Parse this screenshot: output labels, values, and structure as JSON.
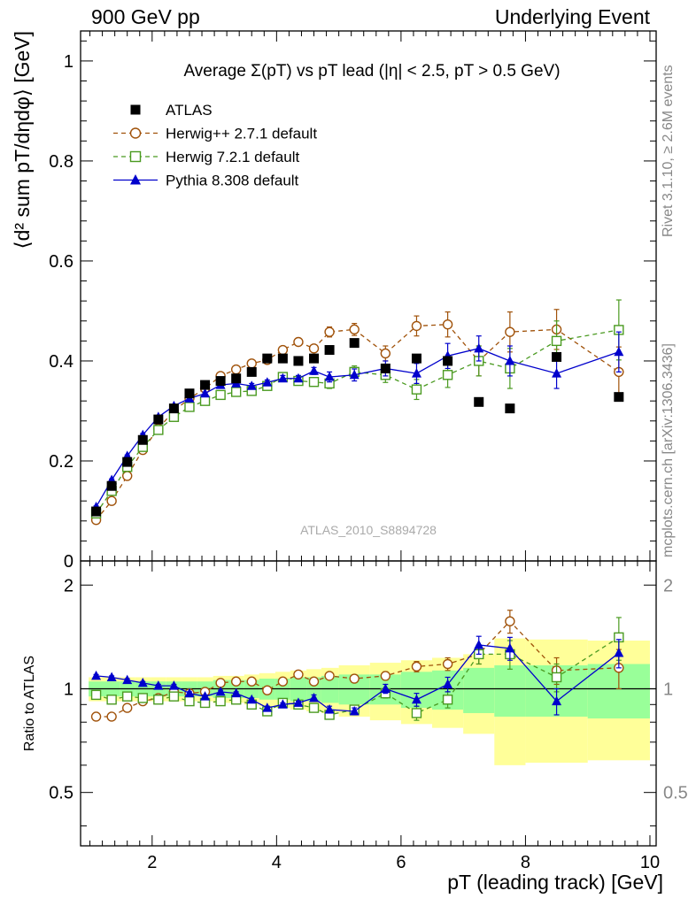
{
  "header": {
    "left": "900 GeV pp",
    "right": "Underlying Event"
  },
  "side_labels": {
    "rivet": "Rivet 3.1.10, ≥ 2.6M events",
    "mcplots": "mcplots.cern.ch [arXiv:1306.3436]"
  },
  "analysis_id": "ATLAS_2010_S8894728",
  "chart_data": [
    {
      "type": "scatter",
      "title": "Average Σ(pT) vs pT lead (|η| < 2.5, pT > 0.5 GeV)",
      "ylabel": "⟨d² sum pT/dηdφ⟩ [GeV]",
      "xlabel": "pT (leading track) [GeV]",
      "xlim": [
        0.85,
        10.1
      ],
      "ylim": [
        0,
        1.06
      ],
      "yticks": [
        0,
        0.2,
        0.4,
        0.6,
        0.8,
        1
      ],
      "ytick_labels": [
        "0",
        "0.2",
        "0.4",
        "0.6",
        "0.8",
        "1"
      ],
      "legend_position": "top-left",
      "series": [
        {
          "name": "ATLAS",
          "color": "#000000",
          "marker": "filled-square",
          "x": [
            1.1,
            1.35,
            1.6,
            1.85,
            2.1,
            2.35,
            2.6,
            2.85,
            3.1,
            3.35,
            3.6,
            3.85,
            4.1,
            4.35,
            4.6,
            4.85,
            5.25,
            5.75,
            6.25,
            6.75,
            7.25,
            7.75,
            8.5,
            9.5
          ],
          "y": [
            0.099,
            0.15,
            0.198,
            0.242,
            0.283,
            0.305,
            0.335,
            0.352,
            0.36,
            0.365,
            0.378,
            0.405,
            0.405,
            0.4,
            0.405,
            0.422,
            0.436,
            0.385,
            0.405,
            0.4,
            0.318,
            0.305,
            0.408,
            0.328
          ]
        },
        {
          "name": "Herwig++ 2.7.1 default",
          "color": "#a0520a",
          "marker": "open-circle",
          "line": "dashed",
          "x": [
            1.1,
            1.35,
            1.6,
            1.85,
            2.1,
            2.35,
            2.6,
            2.85,
            3.1,
            3.35,
            3.6,
            3.85,
            4.1,
            4.35,
            4.6,
            4.85,
            5.25,
            5.75,
            6.25,
            6.75,
            7.25,
            7.75,
            8.5,
            9.5
          ],
          "y": [
            0.082,
            0.12,
            0.17,
            0.222,
            0.265,
            0.3,
            0.325,
            0.345,
            0.37,
            0.383,
            0.395,
            0.402,
            0.422,
            0.438,
            0.425,
            0.458,
            0.463,
            0.415,
            0.47,
            0.473,
            0.4,
            0.458,
            0.463,
            0.378
          ],
          "yerr": [
            0.002,
            0.002,
            0.002,
            0.003,
            0.003,
            0.003,
            0.003,
            0.003,
            0.004,
            0.004,
            0.005,
            0.005,
            0.006,
            0.006,
            0.007,
            0.01,
            0.012,
            0.015,
            0.02,
            0.025,
            0.03,
            0.04,
            0.04,
            0.05
          ]
        },
        {
          "name": "Herwig 7.2.1 default",
          "color": "#4a9a20",
          "marker": "open-square",
          "line": "dashed",
          "x": [
            1.1,
            1.35,
            1.6,
            1.85,
            2.1,
            2.35,
            2.6,
            2.85,
            3.1,
            3.35,
            3.6,
            3.85,
            4.1,
            4.35,
            4.6,
            4.85,
            5.25,
            5.75,
            6.25,
            6.75,
            7.25,
            7.75,
            8.5,
            9.5
          ],
          "y": [
            0.095,
            0.14,
            0.188,
            0.228,
            0.262,
            0.288,
            0.308,
            0.32,
            0.332,
            0.338,
            0.34,
            0.35,
            0.368,
            0.36,
            0.358,
            0.355,
            0.378,
            0.372,
            0.343,
            0.372,
            0.4,
            0.385,
            0.44,
            0.462
          ],
          "yerr": [
            0.002,
            0.002,
            0.002,
            0.003,
            0.003,
            0.003,
            0.003,
            0.003,
            0.004,
            0.004,
            0.005,
            0.005,
            0.006,
            0.006,
            0.007,
            0.01,
            0.012,
            0.015,
            0.02,
            0.025,
            0.03,
            0.04,
            0.04,
            0.06
          ]
        },
        {
          "name": "Pythia 8.308 default",
          "color": "#0000cc",
          "marker": "filled-triangle",
          "line": "solid",
          "x": [
            1.1,
            1.35,
            1.6,
            1.85,
            2.1,
            2.35,
            2.6,
            2.85,
            3.1,
            3.35,
            3.6,
            3.85,
            4.1,
            4.35,
            4.6,
            4.85,
            5.25,
            5.75,
            6.25,
            6.75,
            7.25,
            7.75,
            8.5,
            9.5
          ],
          "y": [
            0.108,
            0.162,
            0.21,
            0.252,
            0.288,
            0.31,
            0.325,
            0.335,
            0.352,
            0.355,
            0.35,
            0.357,
            0.365,
            0.365,
            0.38,
            0.368,
            0.372,
            0.385,
            0.375,
            0.41,
            0.425,
            0.4,
            0.375,
            0.418
          ],
          "yerr": [
            0.002,
            0.002,
            0.002,
            0.003,
            0.003,
            0.003,
            0.003,
            0.003,
            0.004,
            0.004,
            0.005,
            0.005,
            0.006,
            0.006,
            0.007,
            0.01,
            0.012,
            0.015,
            0.02,
            0.025,
            0.025,
            0.03,
            0.03,
            0.04
          ]
        }
      ]
    },
    {
      "type": "scatter",
      "ylabel": "Ratio to ATLAS",
      "xlabel": "pT (leading track) [GeV]",
      "ylim": [
        0.35,
        2.35
      ],
      "yticks": [
        0.5,
        1,
        2
      ],
      "ytick_labels": [
        "0.5",
        "1",
        "2"
      ],
      "xticks": [
        2,
        4,
        6,
        8,
        10
      ],
      "xtick_labels": [
        "2",
        "4",
        "6",
        "8",
        "10"
      ],
      "bins": [
        [
          0.98,
          1.22
        ],
        [
          1.22,
          1.48
        ],
        [
          1.48,
          1.72
        ],
        [
          1.72,
          1.98
        ],
        [
          1.98,
          2.22
        ],
        [
          2.22,
          2.48
        ],
        [
          2.48,
          2.72
        ],
        [
          2.72,
          2.98
        ],
        [
          2.98,
          3.22
        ],
        [
          3.22,
          3.48
        ],
        [
          3.48,
          3.72
        ],
        [
          3.72,
          3.98
        ],
        [
          3.98,
          4.22
        ],
        [
          4.22,
          4.48
        ],
        [
          4.48,
          4.72
        ],
        [
          4.72,
          5.0
        ],
        [
          5.0,
          5.5
        ],
        [
          5.5,
          6.0
        ],
        [
          6.0,
          6.5
        ],
        [
          6.5,
          7.0
        ],
        [
          7.0,
          7.5
        ],
        [
          7.5,
          8.0
        ],
        [
          8.0,
          9.0
        ],
        [
          9.0,
          10.0
        ]
      ],
      "stat_band": [
        0.05,
        0.05,
        0.05,
        0.05,
        0.05,
        0.05,
        0.05,
        0.05,
        0.06,
        0.06,
        0.06,
        0.07,
        0.07,
        0.08,
        0.08,
        0.09,
        0.1,
        0.1,
        0.12,
        0.13,
        0.15,
        0.17,
        0.17,
        0.18
      ],
      "total_band": [
        0.08,
        0.08,
        0.08,
        0.08,
        0.08,
        0.08,
        0.08,
        0.08,
        0.09,
        0.09,
        0.1,
        0.11,
        0.12,
        0.13,
        0.14,
        0.15,
        0.17,
        0.19,
        0.21,
        0.23,
        0.26,
        0.4,
        0.39,
        0.38
      ],
      "band_colors": {
        "stat": "#99ff99",
        "total": "#ffff99"
      },
      "series": [
        {
          "name": "Herwig++ 2.7.1 default",
          "color": "#a0520a",
          "y": [
            0.83,
            0.83,
            0.88,
            0.92,
            0.94,
            0.98,
            0.97,
            0.98,
            1.04,
            1.05,
            1.05,
            0.99,
            1.05,
            1.1,
            1.05,
            1.09,
            1.07,
            1.09,
            1.16,
            1.18,
            1.26,
            1.57,
            1.13,
            1.15
          ],
          "yerr": [
            0.01,
            0.01,
            0.01,
            0.01,
            0.01,
            0.01,
            0.01,
            0.01,
            0.01,
            0.01,
            0.01,
            0.01,
            0.01,
            0.01,
            0.02,
            0.02,
            0.02,
            0.03,
            0.04,
            0.05,
            0.08,
            0.12,
            0.1,
            0.15
          ]
        },
        {
          "name": "Herwig 7.2.1 default",
          "color": "#4a9a20",
          "y": [
            0.96,
            0.93,
            0.95,
            0.94,
            0.93,
            0.95,
            0.92,
            0.91,
            0.92,
            0.93,
            0.9,
            0.86,
            0.91,
            0.9,
            0.88,
            0.84,
            0.87,
            0.97,
            0.85,
            0.93,
            1.26,
            1.26,
            1.08,
            1.41
          ],
          "yerr": [
            0.01,
            0.01,
            0.01,
            0.01,
            0.01,
            0.01,
            0.01,
            0.01,
            0.01,
            0.01,
            0.01,
            0.01,
            0.01,
            0.01,
            0.02,
            0.02,
            0.02,
            0.03,
            0.04,
            0.05,
            0.08,
            0.12,
            0.1,
            0.2
          ]
        },
        {
          "name": "Pythia 8.308 default",
          "color": "#0000cc",
          "y": [
            1.09,
            1.08,
            1.06,
            1.04,
            1.02,
            1.02,
            0.97,
            0.95,
            0.98,
            0.97,
            0.93,
            0.88,
            0.9,
            0.91,
            0.94,
            0.87,
            0.86,
            1.0,
            0.93,
            1.03,
            1.34,
            1.31,
            0.92,
            1.27
          ],
          "yerr": [
            0.01,
            0.01,
            0.01,
            0.01,
            0.01,
            0.01,
            0.01,
            0.01,
            0.01,
            0.01,
            0.01,
            0.01,
            0.01,
            0.01,
            0.02,
            0.02,
            0.02,
            0.03,
            0.04,
            0.05,
            0.08,
            0.1,
            0.08,
            0.12
          ]
        }
      ]
    }
  ]
}
